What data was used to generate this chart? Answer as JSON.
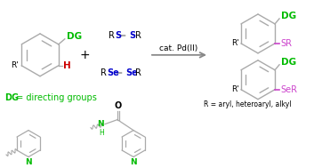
{
  "bg_color": "#ffffff",
  "green": "#00bb00",
  "blue": "#0000cc",
  "purple": "#cc44cc",
  "red": "#cc0000",
  "black": "#000000",
  "bond_color": "#aaaaaa",
  "arrow_color": "#888888",
  "cat_text": "cat. Pd(II)",
  "dg_label": "DG",
  "dg_def_dg": "DG",
  "dg_def_rest": " = directing groups",
  "r_label": "R = aryl, heteroaryl, alkyl",
  "figw": 3.53,
  "figh": 1.89,
  "dpi": 100
}
